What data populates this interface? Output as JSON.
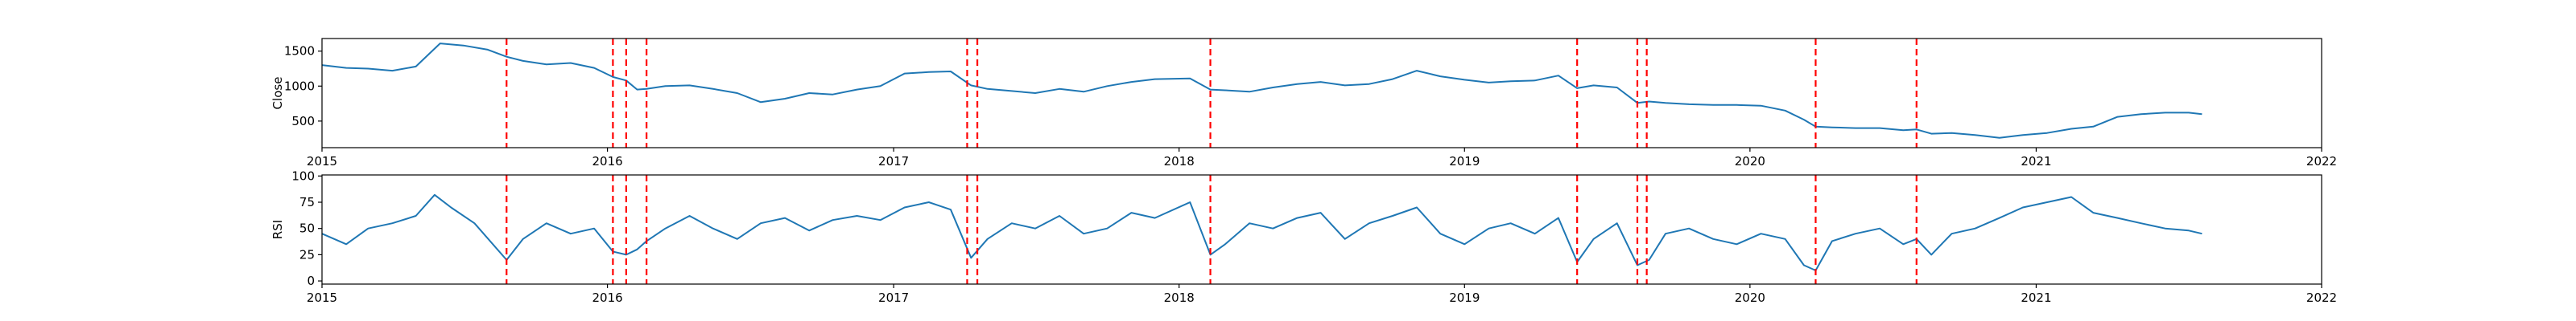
{
  "chart_data": [
    {
      "type": "line",
      "ylabel": "Close",
      "xlabel": "",
      "xlim": [
        "2015-01-01",
        "2022-01-01"
      ],
      "ylim": [
        120,
        1680
      ],
      "yticks": [
        500,
        1000,
        1500
      ],
      "ytick_labels": [
        "500",
        "1000",
        "1500"
      ],
      "xticks": [
        "2015-01-01",
        "2016-01-01",
        "2017-01-01",
        "2018-01-01",
        "2019-01-01",
        "2020-01-01",
        "2021-01-01",
        "2022-01-01"
      ],
      "xtick_labels": [
        "2015",
        "2016",
        "2017",
        "2018",
        "2019",
        "2020",
        "2021",
        "2022"
      ],
      "line_color": "#1f77b4",
      "series": [
        {
          "x": [
            "2015-01-01",
            "2015-02-01",
            "2015-03-01",
            "2015-04-01",
            "2015-05-01",
            "2015-06-01",
            "2015-07-01",
            "2015-08-01",
            "2015-08-25",
            "2015-09-15",
            "2015-10-15",
            "2015-11-15",
            "2015-12-15",
            "2016-01-08",
            "2016-01-25",
            "2016-02-08",
            "2016-02-20",
            "2016-03-15",
            "2016-04-15",
            "2016-05-15",
            "2016-06-15",
            "2016-07-15",
            "2016-08-15",
            "2016-09-15",
            "2016-10-15",
            "2016-11-15",
            "2016-12-15",
            "2017-01-15",
            "2017-02-15",
            "2017-03-15",
            "2017-04-10",
            "2017-05-01",
            "2017-06-01",
            "2017-07-01",
            "2017-08-01",
            "2017-09-01",
            "2017-10-01",
            "2017-11-01",
            "2017-12-01",
            "2018-01-15",
            "2018-02-10",
            "2018-03-01",
            "2018-04-01",
            "2018-05-01",
            "2018-06-01",
            "2018-07-01",
            "2018-08-01",
            "2018-09-01",
            "2018-10-01",
            "2018-11-01",
            "2018-12-01",
            "2019-01-01",
            "2019-02-01",
            "2019-03-01",
            "2019-04-01",
            "2019-05-01",
            "2019-05-25",
            "2019-06-15",
            "2019-07-15",
            "2019-08-10",
            "2019-08-25",
            "2019-09-15",
            "2019-10-15",
            "2019-11-15",
            "2019-12-15",
            "2020-01-15",
            "2020-02-15",
            "2020-03-10",
            "2020-03-25",
            "2020-04-15",
            "2020-05-15",
            "2020-06-15",
            "2020-07-15",
            "2020-08-01",
            "2020-08-20",
            "2020-09-15",
            "2020-10-15",
            "2020-11-15",
            "2020-12-15",
            "2021-01-15",
            "2021-02-15",
            "2021-03-15",
            "2021-04-15",
            "2021-05-15",
            "2021-06-15",
            "2021-07-15",
            "2021-08-01"
          ],
          "y": [
            1300,
            1260,
            1250,
            1220,
            1280,
            1610,
            1580,
            1520,
            1420,
            1360,
            1310,
            1330,
            1260,
            1130,
            1080,
            950,
            960,
            1000,
            1010,
            960,
            900,
            770,
            820,
            900,
            880,
            950,
            1000,
            1180,
            1200,
            1210,
            1010,
            960,
            930,
            900,
            960,
            920,
            1000,
            1060,
            1100,
            1110,
            950,
            940,
            920,
            980,
            1030,
            1060,
            1010,
            1030,
            1100,
            1220,
            1140,
            1090,
            1050,
            1070,
            1080,
            1150,
            970,
            1010,
            980,
            760,
            780,
            760,
            740,
            730,
            730,
            720,
            650,
            520,
            420,
            410,
            400,
            400,
            370,
            380,
            320,
            330,
            300,
            260,
            300,
            330,
            390,
            420,
            560,
            600,
            620,
            620,
            600
          ]
        }
      ]
    },
    {
      "type": "line",
      "ylabel": "RSI",
      "xlabel": "",
      "xlim": [
        "2015-01-01",
        "2022-01-01"
      ],
      "ylim": [
        -3,
        101
      ],
      "yticks": [
        0,
        25,
        50,
        75,
        100
      ],
      "ytick_labels": [
        "0",
        "25",
        "50",
        "75",
        "100"
      ],
      "xticks": [
        "2015-01-01",
        "2016-01-01",
        "2017-01-01",
        "2018-01-01",
        "2019-01-01",
        "2020-01-01",
        "2021-01-01",
        "2022-01-01"
      ],
      "xtick_labels": [
        "2015",
        "2016",
        "2017",
        "2018",
        "2019",
        "2020",
        "2021",
        "2022"
      ],
      "line_color": "#1f77b4",
      "series": [
        {
          "x": [
            "2015-01-01",
            "2015-02-01",
            "2015-03-01",
            "2015-04-01",
            "2015-05-01",
            "2015-05-25",
            "2015-06-15",
            "2015-07-15",
            "2015-08-25",
            "2015-09-15",
            "2015-10-15",
            "2015-11-15",
            "2015-12-15",
            "2016-01-08",
            "2016-01-25",
            "2016-02-08",
            "2016-02-20",
            "2016-03-15",
            "2016-04-15",
            "2016-05-15",
            "2016-06-15",
            "2016-07-15",
            "2016-08-15",
            "2016-09-15",
            "2016-10-15",
            "2016-11-15",
            "2016-12-15",
            "2017-01-15",
            "2017-02-15",
            "2017-03-15",
            "2017-04-10",
            "2017-05-01",
            "2017-06-01",
            "2017-07-01",
            "2017-08-01",
            "2017-09-01",
            "2017-10-01",
            "2017-11-01",
            "2017-12-01",
            "2018-01-15",
            "2018-02-10",
            "2018-03-01",
            "2018-04-01",
            "2018-05-01",
            "2018-06-01",
            "2018-07-01",
            "2018-08-01",
            "2018-09-01",
            "2018-10-01",
            "2018-11-01",
            "2018-12-01",
            "2019-01-01",
            "2019-02-01",
            "2019-03-01",
            "2019-04-01",
            "2019-05-01",
            "2019-05-25",
            "2019-06-15",
            "2019-07-15",
            "2019-08-10",
            "2019-08-25",
            "2019-09-15",
            "2019-10-15",
            "2019-11-15",
            "2019-12-15",
            "2020-01-15",
            "2020-02-15",
            "2020-03-10",
            "2020-03-25",
            "2020-04-15",
            "2020-05-15",
            "2020-06-15",
            "2020-07-15",
            "2020-08-01",
            "2020-08-20",
            "2020-09-15",
            "2020-10-15",
            "2020-11-15",
            "2020-12-15",
            "2021-01-15",
            "2021-02-15",
            "2021-03-15",
            "2021-04-15",
            "2021-05-15",
            "2021-06-15",
            "2021-07-15",
            "2021-08-01"
          ],
          "y": [
            45,
            35,
            50,
            55,
            62,
            82,
            70,
            55,
            20,
            40,
            55,
            45,
            50,
            28,
            25,
            30,
            38,
            50,
            62,
            50,
            40,
            55,
            60,
            48,
            58,
            62,
            58,
            70,
            75,
            68,
            22,
            40,
            55,
            50,
            62,
            45,
            50,
            65,
            60,
            75,
            25,
            35,
            55,
            50,
            60,
            65,
            40,
            55,
            62,
            70,
            45,
            35,
            50,
            55,
            45,
            60,
            18,
            40,
            55,
            15,
            20,
            45,
            50,
            40,
            35,
            45,
            40,
            15,
            10,
            38,
            45,
            50,
            35,
            40,
            25,
            45,
            50,
            60,
            70,
            75,
            80,
            65,
            60,
            55,
            50,
            48,
            45
          ]
        }
      ]
    }
  ],
  "markers": {
    "color": "#ff0000",
    "dates": [
      "2015-08-25",
      "2016-01-08",
      "2016-01-25",
      "2016-02-20",
      "2017-04-05",
      "2017-04-18",
      "2018-02-10",
      "2019-05-25",
      "2019-08-10",
      "2019-08-22",
      "2020-03-25",
      "2020-08-01"
    ]
  }
}
